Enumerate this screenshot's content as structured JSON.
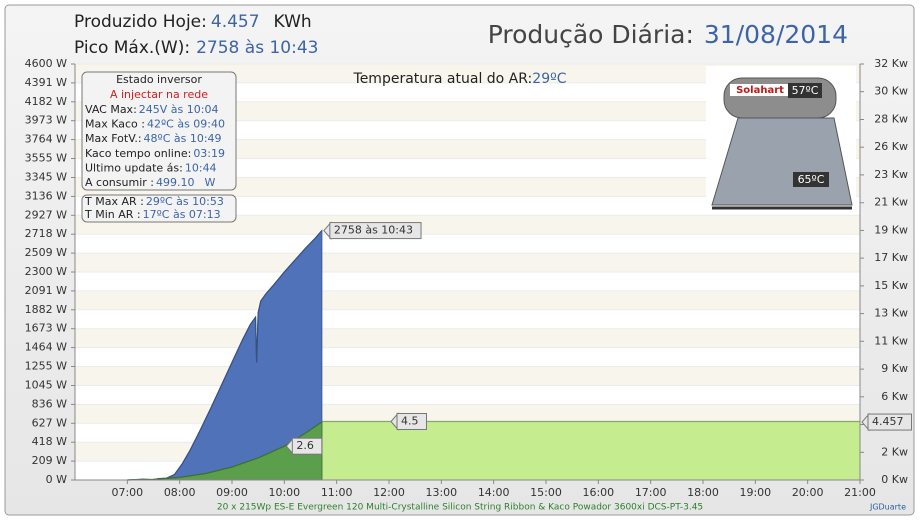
{
  "header": {
    "produced_label": "Produzido Hoje:",
    "produced_value": "4.457",
    "produced_unit": "KWh",
    "peak_label": "Pico Máx.(W):",
    "peak_value": "2758 às 10:43",
    "title": "Produção Diária:",
    "date": "31/08/2014"
  },
  "temperature": {
    "label": "Temperatura atual do AR:",
    "value": "29ºC"
  },
  "inverter": {
    "title": "Estado inversor",
    "status": "A injectar na rede",
    "rows": [
      [
        "VAC Max:",
        "245V às 10:04"
      ],
      [
        "Max Kaco :",
        "42ºC às 09:40"
      ],
      [
        "Max FotV.:",
        "48ºC às 10:49"
      ],
      [
        "Kaco tempo online:",
        "03:19"
      ],
      [
        "Ultimo update ás:",
        "10:44"
      ],
      [
        "A consumir :",
        "499.10",
        "W"
      ]
    ]
  },
  "air": {
    "rows": [
      [
        "T Max AR :",
        "29ºC às 10:53"
      ],
      [
        "T Min AR :",
        "17ºC às 07:13"
      ]
    ]
  },
  "heater": {
    "brand": "Solahart",
    "tank_temp": "57ºC",
    "panel_temp": "65ºC"
  },
  "chart_data": {
    "type": "area",
    "xlim": [
      6,
      21
    ],
    "xticks": [
      {
        "value": 7,
        "label": "07:00"
      },
      {
        "value": 8,
        "label": "08:00"
      },
      {
        "value": 9,
        "label": "09:00"
      },
      {
        "value": 10,
        "label": "10:00"
      },
      {
        "value": 11,
        "label": "11:00"
      },
      {
        "value": 12,
        "label": "12:00"
      },
      {
        "value": 13,
        "label": "13:00"
      },
      {
        "value": 14,
        "label": "14:00"
      },
      {
        "value": 15,
        "label": "15:00"
      },
      {
        "value": 16,
        "label": "16:00"
      },
      {
        "value": 17,
        "label": "17:00"
      },
      {
        "value": 18,
        "label": "18:00"
      },
      {
        "value": 19,
        "label": "19:00"
      },
      {
        "value": 20,
        "label": "20:00"
      },
      {
        "value": 21,
        "label": "21:00"
      }
    ],
    "ylim": [
      0,
      4600
    ],
    "yticks": [
      {
        "value": 0,
        "label": "0 W"
      },
      {
        "value": 209,
        "label": "209 W"
      },
      {
        "value": 418,
        "label": "418 W"
      },
      {
        "value": 627,
        "label": "627 W"
      },
      {
        "value": 836,
        "label": "836 W"
      },
      {
        "value": 1045,
        "label": "1045 W"
      },
      {
        "value": 1255,
        "label": "1255 W"
      },
      {
        "value": 1464,
        "label": "1464 W"
      },
      {
        "value": 1673,
        "label": "1673 W"
      },
      {
        "value": 1882,
        "label": "1882 W"
      },
      {
        "value": 2091,
        "label": "2091 W"
      },
      {
        "value": 2300,
        "label": "2300 W"
      },
      {
        "value": 2509,
        "label": "2509 W"
      },
      {
        "value": 2718,
        "label": "2718 W"
      },
      {
        "value": 2927,
        "label": "2927 W"
      },
      {
        "value": 3136,
        "label": "3136 W"
      },
      {
        "value": 3345,
        "label": "3345 W"
      },
      {
        "value": 3555,
        "label": "3555 W"
      },
      {
        "value": 3764,
        "label": "3764 W"
      },
      {
        "value": 3973,
        "label": "3973 W"
      },
      {
        "value": 4182,
        "label": "4182 W"
      },
      {
        "value": 4391,
        "label": "4391 W"
      },
      {
        "value": 4600,
        "label": "4600 W"
      }
    ],
    "y2lim": [
      0,
      32
    ],
    "y2ticks": [
      {
        "value": 0,
        "label": "0 Kw"
      },
      {
        "value": 2.13,
        "label": "2 Kw"
      },
      {
        "value": 4.27,
        "label": "4 Kw"
      },
      {
        "value": 6.4,
        "label": "6 Kw"
      },
      {
        "value": 8.53,
        "label": "9 Kw"
      },
      {
        "value": 10.67,
        "label": "11 Kw"
      },
      {
        "value": 12.8,
        "label": "13 Kw"
      },
      {
        "value": 14.93,
        "label": "15 Kw"
      },
      {
        "value": 17.07,
        "label": "17 Kw"
      },
      {
        "value": 19.2,
        "label": "19 Kw"
      },
      {
        "value": 21.33,
        "label": "21 Kw"
      },
      {
        "value": 23.47,
        "label": "23 Kw"
      },
      {
        "value": 25.6,
        "label": "26 Kw"
      },
      {
        "value": 27.73,
        "label": "28 Kw"
      },
      {
        "value": 29.87,
        "label": "30 Kw"
      },
      {
        "value": 32,
        "label": "32 Kw"
      }
    ],
    "grid": true,
    "series": [
      {
        "color": "#c6ec90",
        "axis": "y2",
        "x": [
          10.717,
          21
        ],
        "values": [
          4.5,
          4.5
        ]
      },
      {
        "color": "#4f72b8",
        "axis": "y",
        "x": [
          7.0,
          7.3,
          7.5,
          7.6,
          7.75,
          7.9,
          8.05,
          8.2,
          8.4,
          8.6,
          8.8,
          9.0,
          9.2,
          9.35,
          9.45,
          9.47,
          9.5,
          9.55,
          9.65,
          9.8,
          10.0,
          10.2,
          10.4,
          10.6,
          10.717
        ],
        "values": [
          0,
          8,
          3,
          15,
          20,
          60,
          180,
          330,
          560,
          800,
          1050,
          1300,
          1550,
          1720,
          1800,
          1300,
          1850,
          1980,
          2060,
          2160,
          2300,
          2430,
          2560,
          2680,
          2758
        ]
      },
      {
        "color": "#5b9e4c",
        "axis": "y2",
        "x": [
          7,
          7.5,
          8,
          8.5,
          9,
          9.5,
          10,
          10.4,
          10.717
        ],
        "values": [
          0,
          0.05,
          0.2,
          0.5,
          1.0,
          1.7,
          2.6,
          3.6,
          4.457
        ]
      }
    ],
    "annotations": [
      {
        "x": 10.717,
        "y": 2758,
        "axis": "y",
        "text": "2758 às 10:43"
      },
      {
        "x": 10.0,
        "y": 2.6,
        "axis": "y2",
        "text": "2.6"
      },
      {
        "x": 12.0,
        "y": 4.5,
        "axis": "y2",
        "text": "4.5"
      },
      {
        "x": 21,
        "y": 4.457,
        "axis": "y2",
        "text": "4.457"
      }
    ]
  },
  "footer": {
    "system": "20 x 215Wp ES-E Evergreen 120 Multi-Crystalline Silicon String Ribbon & Kaco Powador 3600xi DCS-PT-3.45",
    "author": "JGDuarte"
  }
}
